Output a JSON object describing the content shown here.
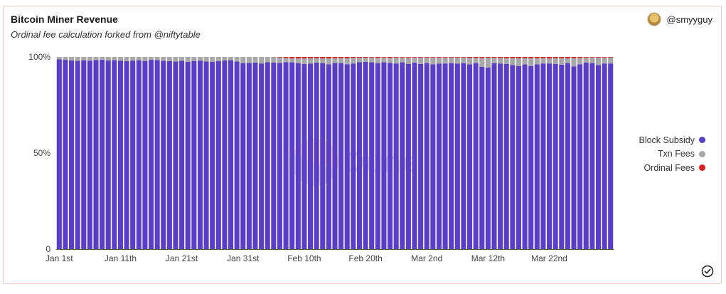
{
  "header": {
    "title": "Bitcoin Miner Revenue",
    "subtitle": "Ordinal fee calculation forked from @niftytable",
    "author": "@smyyguy"
  },
  "watermark": {
    "text": "Dune"
  },
  "colors": {
    "block_subsidy": "#5b3ec8",
    "txn_fees": "#a8a8a8",
    "ordinal_fees": "#d91f1f",
    "card_border": "#f2c8c0"
  },
  "chart_data": {
    "type": "bar",
    "stacked": "percent",
    "title": "Bitcoin Miner Revenue",
    "subtitle": "Ordinal fee calculation forked from @niftytable",
    "xlabel": "",
    "ylabel": "",
    "ylim": [
      0,
      100
    ],
    "y_ticks": [
      "0",
      "50%",
      "100%"
    ],
    "x_tick_labels": [
      "Jan 1st",
      "Jan 11th",
      "Jan 21st",
      "Jan 31st",
      "Feb 10th",
      "Feb 20th",
      "Mar 2nd",
      "Mar 12th",
      "Mar 22nd"
    ],
    "x_start": "2023-01-01",
    "x_end": "2023-03-31",
    "legend_position": "right",
    "grid": false,
    "series": [
      {
        "name": "Block Subsidy",
        "color": "#5b3ec8",
        "values": [
          98.8,
          98.5,
          98.2,
          98.0,
          98.3,
          98.1,
          98.4,
          98.6,
          98.2,
          98.3,
          98.0,
          97.8,
          98.1,
          98.3,
          97.9,
          98.5,
          98.4,
          98.0,
          97.8,
          97.6,
          98.0,
          97.5,
          97.9,
          98.1,
          97.6,
          97.5,
          97.8,
          98.2,
          98.3,
          97.6,
          96.8,
          96.9,
          97.1,
          96.6,
          97.3,
          97.1,
          96.9,
          97.3,
          97.2,
          96.8,
          96.3,
          96.5,
          97.1,
          96.8,
          96.1,
          96.9,
          96.8,
          96.2,
          96.6,
          97.3,
          97.5,
          97.2,
          96.8,
          97.3,
          96.9,
          96.6,
          97.2,
          96.4,
          97.0,
          96.3,
          96.8,
          96.2,
          96.5,
          96.6,
          96.8,
          96.6,
          96.8,
          96.1,
          96.8,
          94.9,
          94.5,
          96.7,
          96.6,
          96.4,
          95.8,
          95.2,
          96.1,
          95.3,
          96.1,
          96.6,
          96.6,
          96.4,
          96.0,
          96.8,
          95.1,
          96.2,
          97.1,
          96.8,
          95.8,
          96.6,
          96.6
        ]
      },
      {
        "name": "Txn Fees",
        "color": "#a8a8a8",
        "values": [
          1.2,
          1.5,
          1.8,
          2.0,
          1.7,
          1.9,
          1.6,
          1.4,
          1.8,
          1.7,
          2.0,
          2.2,
          1.9,
          1.7,
          2.1,
          1.5,
          1.6,
          2.0,
          2.2,
          2.4,
          2.0,
          2.5,
          2.1,
          1.9,
          2.4,
          2.5,
          2.2,
          1.8,
          1.7,
          2.4,
          3.2,
          3.1,
          2.9,
          3.4,
          2.7,
          2.8,
          2.9,
          2.2,
          2.1,
          2.4,
          2.9,
          2.8,
          2.2,
          2.4,
          3.1,
          2.5,
          2.6,
          3.2,
          2.9,
          2.3,
          2.1,
          2.5,
          2.8,
          2.4,
          2.7,
          3.1,
          2.5,
          3.3,
          2.7,
          3.4,
          2.9,
          3.5,
          3.2,
          3.1,
          2.9,
          3.1,
          2.9,
          3.5,
          2.7,
          4.6,
          5.1,
          2.9,
          2.9,
          3.0,
          3.6,
          4.2,
          3.3,
          4.1,
          3.3,
          2.8,
          2.7,
          3.0,
          3.4,
          2.5,
          4.3,
          3.3,
          2.6,
          2.9,
          3.9,
          3.1,
          3.1
        ]
      },
      {
        "name": "Ordinal Fees",
        "color": "#d91f1f",
        "values": [
          0,
          0,
          0,
          0,
          0,
          0,
          0,
          0,
          0,
          0,
          0,
          0,
          0,
          0,
          0,
          0,
          0,
          0,
          0,
          0,
          0,
          0,
          0,
          0,
          0,
          0,
          0,
          0,
          0,
          0,
          0,
          0,
          0,
          0,
          0,
          0.1,
          0.2,
          0.5,
          0.7,
          0.8,
          0.8,
          0.7,
          0.7,
          0.8,
          0.8,
          0.6,
          0.6,
          0.6,
          0.5,
          0.4,
          0.4,
          0.3,
          0.4,
          0.3,
          0.4,
          0.3,
          0.3,
          0.3,
          0.3,
          0.3,
          0.3,
          0.3,
          0.3,
          0.3,
          0.3,
          0.3,
          0.3,
          0.4,
          0.5,
          0.5,
          0.4,
          0.4,
          0.5,
          0.6,
          0.6,
          0.6,
          0.6,
          0.6,
          0.6,
          0.6,
          0.7,
          0.6,
          0.6,
          0.7,
          0.6,
          0.5,
          0.3,
          0.3,
          0.3,
          0.3,
          0.3
        ]
      }
    ]
  }
}
